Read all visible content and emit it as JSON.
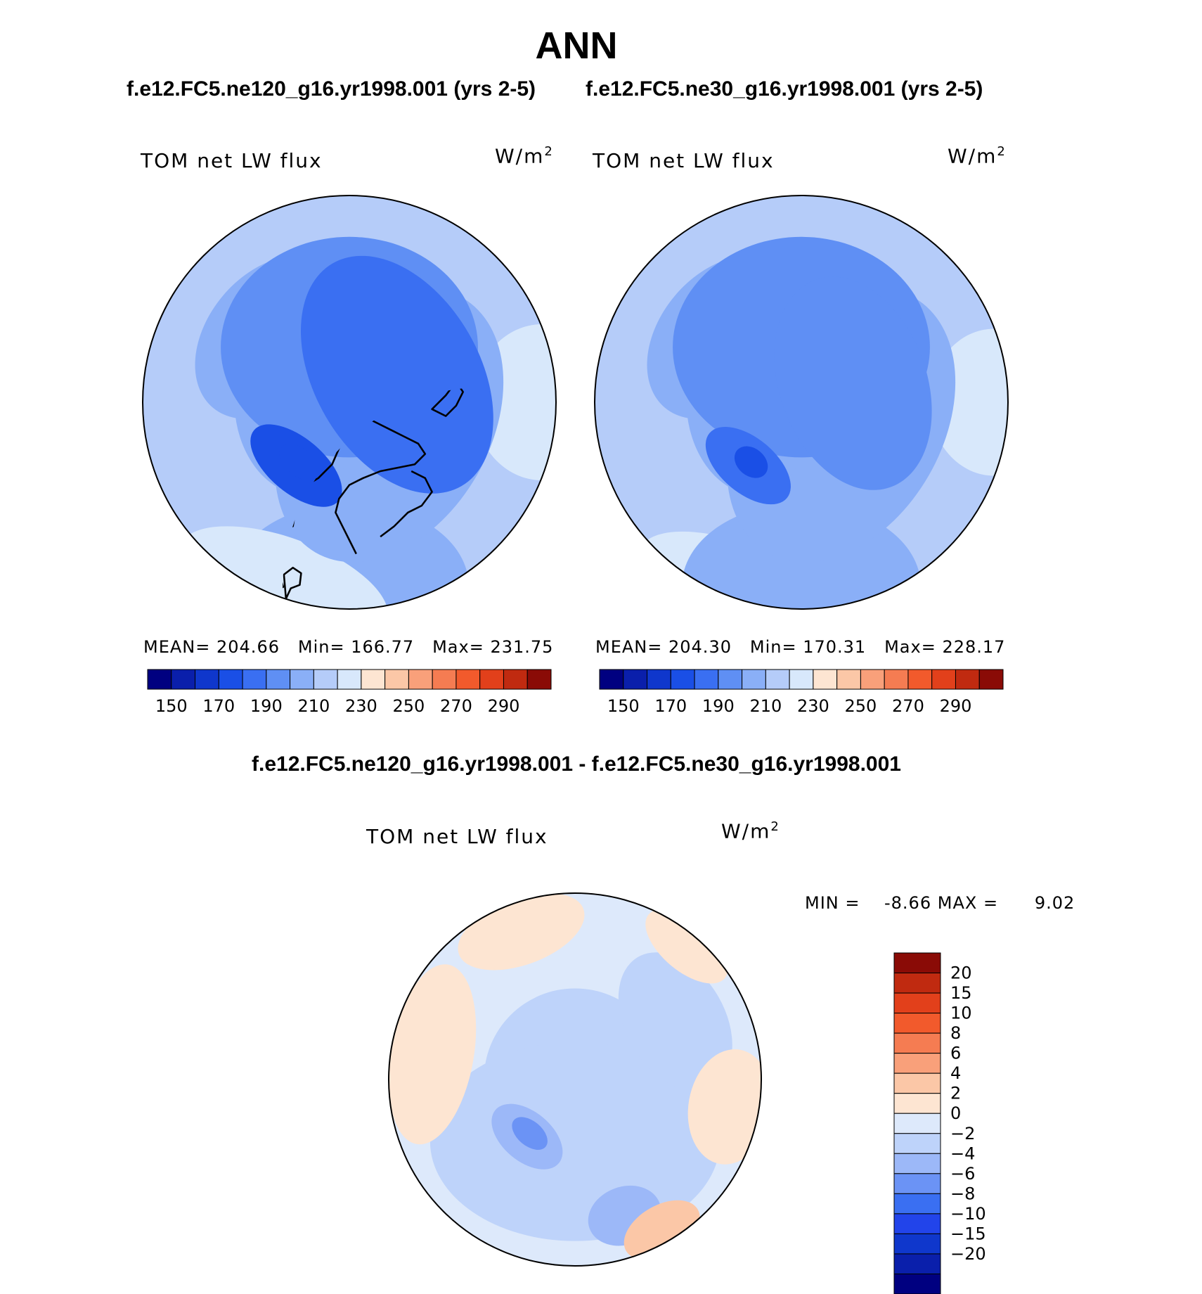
{
  "title": "ANN",
  "diff_title": "f.e12.FC5.ne120_g16.yr1998.001 - f.e12.FC5.ne30_g16.yr1998.001",
  "colors": {
    "mean_levels": [
      "#000080",
      "#0a1fab",
      "#0f37cc",
      "#1a4fe6",
      "#3a6ff2",
      "#5f8ff4",
      "#8aaff7",
      "#b5ccf9",
      "#d8e8fb",
      "#fde5d2",
      "#fbc7a7",
      "#f9a07a",
      "#f57c52",
      "#f25a2c",
      "#e2401b",
      "#c02a10",
      "#8a0b06"
    ],
    "diff_levels": [
      "#000080",
      "#0a1fab",
      "#0f37cc",
      "#2244ea",
      "#3a6ff2",
      "#6b93f5",
      "#9cb8f8",
      "#bed3fa",
      "#dde9fb",
      "#fde5d2",
      "#fbc7a7",
      "#f9a07a",
      "#f57c52",
      "#f25a2c",
      "#e2401b",
      "#c02a10",
      "#8a0b06"
    ]
  },
  "chart_data": [
    {
      "type": "heatmap",
      "title": "f.e12.FC5.ne120_g16.yr1998.001 (yrs 2-5)",
      "variable": "TOM net LW flux",
      "units_base": "W/m",
      "units_exp": "2",
      "projection": "north-polar-stereographic",
      "stats": {
        "mean_label": "MEAN=",
        "mean": "204.66",
        "min_label": "Min=",
        "min": "166.77",
        "max_label": "Max=",
        "max": "231.75"
      },
      "colorbar": {
        "orientation": "horizontal",
        "levels": [
          150,
          160,
          170,
          180,
          190,
          200,
          210,
          220,
          230,
          240,
          250,
          260,
          270,
          280,
          290
        ],
        "tick_labels": [
          "150",
          "170",
          "190",
          "210",
          "230",
          "250",
          "270",
          "290"
        ]
      },
      "field": {
        "background": 215,
        "blobs": [
          {
            "lon": 90,
            "colat": 42,
            "rx": 17,
            "ry": 15,
            "value": 228
          },
          {
            "lon": -20,
            "colat": 42,
            "rx": 24,
            "ry": 10,
            "value": 226
          },
          {
            "lon": 0,
            "colat": 40,
            "rx": 26,
            "ry": 18,
            "value": 205
          },
          {
            "lon": 60,
            "colat": 10,
            "rx": 32,
            "ry": 22,
            "value": 200
          },
          {
            "lon": 180,
            "colat": 12,
            "rx": 28,
            "ry": 24,
            "value": 196
          },
          {
            "lon": -130,
            "colat": 22,
            "rx": 20,
            "ry": 14,
            "value": 204
          },
          {
            "lon": -80,
            "colat": 12,
            "rx": 18,
            "ry": 13,
            "value": 200
          },
          {
            "lon": 120,
            "colat": 12,
            "rx": 28,
            "ry": 18,
            "value": 188
          },
          {
            "lon": -40,
            "colat": 18,
            "rx": 12,
            "ry": 6,
            "value": 178
          },
          {
            "lon": -40,
            "colat": 17,
            "rx": 5,
            "ry": 3,
            "value": 170
          }
        ]
      }
    },
    {
      "type": "heatmap",
      "title": "f.e12.FC5.ne30_g16.yr1998.001 (yrs 2-5)",
      "variable": "TOM net LW flux",
      "units_base": "W/m",
      "units_exp": "2",
      "projection": "north-polar-stereographic",
      "stats": {
        "mean_label": "MEAN=",
        "mean": "204.30",
        "min_label": "Min=",
        "min": "170.31",
        "max_label": "Max=",
        "max": "228.17"
      },
      "colorbar": {
        "orientation": "horizontal",
        "levels": [
          150,
          160,
          170,
          180,
          190,
          200,
          210,
          220,
          230,
          240,
          250,
          260,
          270,
          280,
          290
        ],
        "tick_labels": [
          "150",
          "170",
          "190",
          "210",
          "230",
          "250",
          "270",
          "290"
        ]
      },
      "field": {
        "background": 215,
        "blobs": [
          {
            "lon": 90,
            "colat": 42,
            "rx": 16,
            "ry": 14,
            "value": 227
          },
          {
            "lon": -20,
            "colat": 42,
            "rx": 22,
            "ry": 9,
            "value": 225
          },
          {
            "lon": 0,
            "colat": 40,
            "rx": 26,
            "ry": 18,
            "value": 205
          },
          {
            "lon": 60,
            "colat": 10,
            "rx": 32,
            "ry": 22,
            "value": 200
          },
          {
            "lon": 180,
            "colat": 12,
            "rx": 28,
            "ry": 24,
            "value": 196
          },
          {
            "lon": -130,
            "colat": 22,
            "rx": 20,
            "ry": 14,
            "value": 204
          },
          {
            "lon": -80,
            "colat": 12,
            "rx": 18,
            "ry": 13,
            "value": 200
          },
          {
            "lon": 110,
            "colat": 12,
            "rx": 24,
            "ry": 16,
            "value": 190
          },
          {
            "lon": -40,
            "colat": 18,
            "rx": 11,
            "ry": 6,
            "value": 180
          },
          {
            "lon": -40,
            "colat": 17,
            "rx": 4,
            "ry": 3,
            "value": 174
          }
        ]
      }
    },
    {
      "type": "heatmap",
      "title": "f.e12.FC5.ne120_g16.yr1998.001 - f.e12.FC5.ne30_g16.yr1998.001",
      "variable": "TOM net LW flux",
      "units_base": "W/m",
      "units_exp": "2",
      "projection": "north-polar-stereographic",
      "stats": {
        "min_label": "MIN =",
        "min": "-8.66",
        "max_label": "MAX =",
        "max": "9.02"
      },
      "colorbar": {
        "orientation": "vertical",
        "levels": [
          -20,
          -15,
          -10,
          -8,
          -6,
          -4,
          -2,
          0,
          2,
          4,
          6,
          8,
          10,
          15,
          20
        ],
        "tick_labels": [
          "20",
          "15",
          "10",
          "8",
          "6",
          "4",
          "2",
          "0",
          "−2",
          "−4",
          "−6",
          "−8",
          "−10",
          "−15",
          "−20"
        ]
      },
      "field": {
        "background": 1,
        "blobs": [
          {
            "lon": 0,
            "colat": 0,
            "rx": 22,
            "ry": 22,
            "value": -1
          },
          {
            "lon": 0,
            "colat": 15,
            "rx": 35,
            "ry": 24,
            "value": -1
          },
          {
            "lon": -40,
            "colat": 18,
            "rx": 10,
            "ry": 6,
            "value": -3
          },
          {
            "lon": -40,
            "colat": 17,
            "rx": 5,
            "ry": 3,
            "value": -5
          },
          {
            "lon": 120,
            "colat": 28,
            "rx": 18,
            "ry": 12,
            "value": -1
          },
          {
            "lon": 20,
            "colat": 35,
            "rx": 9,
            "ry": 7,
            "value": -3
          },
          {
            "lon": -100,
            "colat": 35,
            "rx": 22,
            "ry": 10,
            "value": 3
          },
          {
            "lon": 80,
            "colat": 38,
            "rx": 14,
            "ry": 10,
            "value": 3
          },
          {
            "lon": 30,
            "colat": 42,
            "rx": 10,
            "ry": 6,
            "value": 5
          },
          {
            "lon": -160,
            "colat": 38,
            "rx": 16,
            "ry": 8,
            "value": 3
          },
          {
            "lon": 140,
            "colat": 42,
            "rx": 12,
            "ry": 6,
            "value": 3
          }
        ]
      }
    }
  ]
}
